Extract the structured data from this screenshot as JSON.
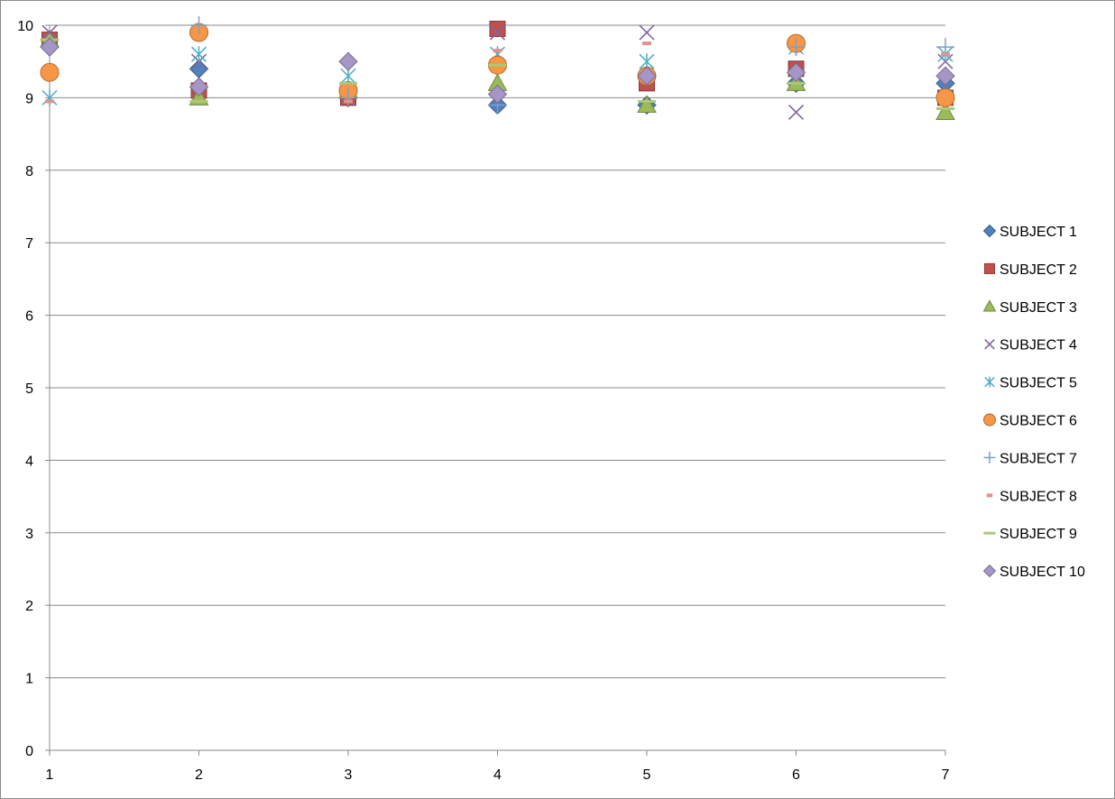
{
  "chart_data": {
    "type": "scatter",
    "title": "",
    "xlabel": "",
    "ylabel": "",
    "x": [
      1,
      2,
      3,
      4,
      5,
      6,
      7
    ],
    "xlim": [
      1,
      7
    ],
    "ylim": [
      0,
      10
    ],
    "xticks": [
      "1",
      "2",
      "3",
      "4",
      "5",
      "6",
      "7"
    ],
    "yticks": [
      "0",
      "1",
      "2",
      "3",
      "4",
      "5",
      "6",
      "7",
      "8",
      "9",
      "10"
    ],
    "grid": "horizontal",
    "legend_position": "right",
    "series": [
      {
        "name": "SUBJECT 1",
        "marker": "diamond",
        "color": "#4f81bd",
        "values": [
          9.8,
          9.4,
          9.0,
          8.9,
          8.9,
          9.2,
          9.2
        ]
      },
      {
        "name": "SUBJECT 2",
        "marker": "square",
        "color": "#c0504d",
        "values": [
          9.8,
          9.1,
          9.0,
          9.95,
          9.2,
          9.4,
          9.0
        ]
      },
      {
        "name": "SUBJECT 3",
        "marker": "triangle",
        "color": "#9bbb59",
        "values": [
          9.8,
          9.0,
          9.1,
          9.2,
          8.9,
          9.2,
          8.8
        ]
      },
      {
        "name": "SUBJECT 4",
        "marker": "x",
        "color": "#8064a2",
        "values": [
          9.9,
          9.5,
          9.0,
          9.9,
          9.9,
          8.8,
          9.5
        ]
      },
      {
        "name": "SUBJECT 5",
        "marker": "star",
        "color": "#4bacc6",
        "values": [
          9.0,
          9.6,
          9.3,
          9.6,
          9.5,
          9.7,
          9.6
        ]
      },
      {
        "name": "SUBJECT 6",
        "marker": "circle",
        "color": "#f79646",
        "values": [
          9.35,
          9.9,
          9.1,
          9.45,
          9.3,
          9.75,
          9.0
        ]
      },
      {
        "name": "SUBJECT 7",
        "marker": "plus",
        "color": "#7f9fc8",
        "values": [
          9.7,
          10.0,
          9.0,
          8.9,
          9.3,
          9.7,
          9.7
        ]
      },
      {
        "name": "SUBJECT 8",
        "marker": "dash",
        "color": "#e2918e",
        "values": [
          8.95,
          9.2,
          8.95,
          9.65,
          9.75,
          9.3,
          9.6
        ]
      },
      {
        "name": "SUBJECT 9",
        "marker": "line",
        "color": "#a9c97a",
        "values": [
          9.8,
          8.95,
          9.2,
          9.45,
          8.95,
          9.2,
          8.85
        ]
      },
      {
        "name": "SUBJECT 10",
        "marker": "diamond",
        "color": "#a696c8",
        "values": [
          9.7,
          9.15,
          9.5,
          9.05,
          9.3,
          9.35,
          9.3
        ]
      }
    ]
  }
}
